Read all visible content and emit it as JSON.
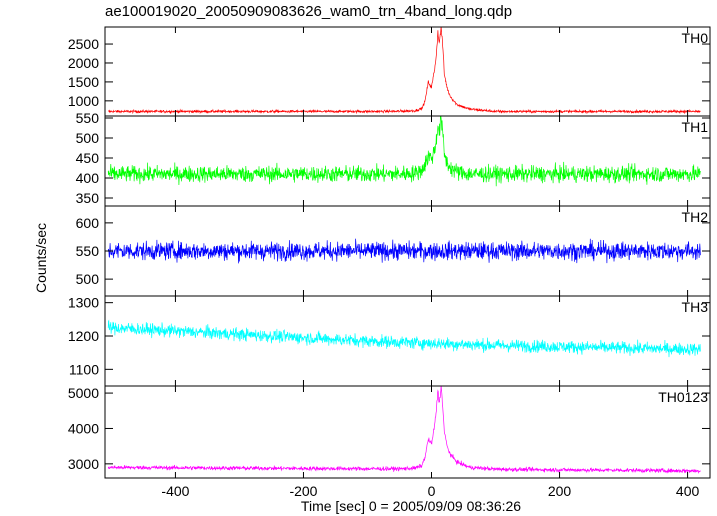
{
  "chart_data": {
    "type": "line",
    "title": "ae100019020_20050909083626_wam0_trn_4band_long.qdp",
    "xlabel": "Time [sec] 0 = 2005/09/09 08:36:26",
    "ylabel": "Counts/sec",
    "xlim": [
      -510,
      435
    ],
    "x_ticks": [
      -400,
      -200,
      0,
      200,
      400
    ],
    "panels": [
      {
        "name": "TH0",
        "color": "#ff0000",
        "ylim": [
          600,
          2950
        ],
        "y_ticks": [
          1000,
          1500,
          2000,
          2500
        ],
        "series": [
          {
            "x": [
              -505,
              -400,
              -300,
              -200,
              -100,
              -50,
              -25,
              -15,
              -10,
              -5,
              0,
              5,
              8,
              10,
              12,
              15,
              18,
              20,
              25,
              30,
              40,
              60,
              100,
              200,
              300,
              420
            ],
            "y": [
              720,
              720,
              720,
              720,
              720,
              725,
              740,
              800,
              1000,
              1500,
              1350,
              1850,
              2300,
              2850,
              2500,
              2950,
              2350,
              1700,
              1300,
              1100,
              900,
              780,
              720,
              720,
              720,
              720
            ]
          }
        ]
      },
      {
        "name": "TH1",
        "color": "#00ff00",
        "ylim": [
          330,
          555
        ],
        "y_ticks": [
          350,
          400,
          450,
          500,
          550
        ],
        "series": [
          {
            "x": [
              -505,
              -400,
              -300,
              -200,
              -100,
              -50,
              -25,
              -15,
              -10,
              -5,
              0,
              5,
              8,
              10,
              12,
              15,
              18,
              20,
              25,
              30,
              40,
              60,
              100,
              200,
              300,
              420
            ],
            "y": [
              410,
              410,
              410,
              410,
              410,
              410,
              412,
              420,
              435,
              455,
              450,
              470,
              500,
              540,
              510,
              555,
              500,
              460,
              435,
              425,
              415,
              410,
              410,
              410,
              410,
              410
            ]
          }
        ]
      },
      {
        "name": "TH2",
        "color": "#0000ff",
        "ylim": [
          470,
          630
        ],
        "y_ticks": [
          500,
          550,
          600
        ],
        "series": [
          {
            "x": [
              -505,
              -400,
              -300,
              -200,
              -100,
              0,
              100,
              200,
              300,
              420
            ],
            "y": [
              550,
              550,
              550,
              550,
              550,
              550,
              550,
              550,
              550,
              550
            ]
          }
        ]
      },
      {
        "name": "TH3",
        "color": "#00ffff",
        "ylim": [
          1050,
          1320
        ],
        "y_ticks": [
          1100,
          1200,
          1300
        ],
        "series": [
          {
            "x": [
              -505,
              -400,
              -300,
              -200,
              -100,
              0,
              100,
              200,
              300,
              420
            ],
            "y": [
              1225,
              1215,
              1205,
              1195,
              1185,
              1178,
              1172,
              1168,
              1164,
              1160
            ]
          }
        ]
      },
      {
        "name": "TH0123",
        "color": "#ff00ff",
        "ylim": [
          2600,
          5200
        ],
        "y_ticks": [
          3000,
          4000,
          5000
        ],
        "series": [
          {
            "x": [
              -505,
              -400,
              -300,
              -200,
              -100,
              -50,
              -25,
              -15,
              -10,
              -5,
              0,
              5,
              8,
              10,
              12,
              15,
              18,
              20,
              25,
              30,
              40,
              60,
              100,
              200,
              300,
              420
            ],
            "y": [
              2900,
              2890,
              2880,
              2870,
              2860,
              2860,
              2880,
              2950,
              3200,
              3700,
              3550,
              4100,
              4600,
              5100,
              4700,
              5200,
              4500,
              3900,
              3450,
              3250,
              3050,
              2900,
              2850,
              2830,
              2820,
              2800
            ]
          }
        ]
      }
    ]
  }
}
